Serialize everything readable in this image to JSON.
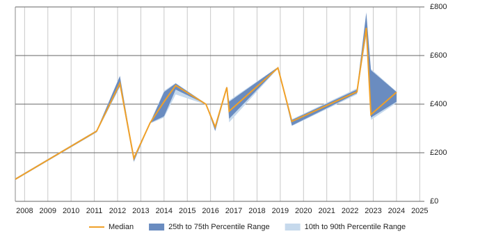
{
  "chart_data": {
    "type": "line",
    "x": [
      2007.6,
      2011.1,
      2012.1,
      2012.7,
      2013.4,
      2014.0,
      2014.5,
      2015.8,
      2016.2,
      2016.7,
      2016.8,
      2018.9,
      2019.5,
      2022.3,
      2022.7,
      2022.9,
      2024.0
    ],
    "series": [
      {
        "name": "Median",
        "color": "#f0a028",
        "values": [
          91,
          289,
          486,
          177,
          323,
          410,
          477,
          400,
          306,
          469,
          371,
          549,
          329,
          451,
          714,
          357,
          449
        ]
      },
      {
        "name": "25th to 75th Percentile Range",
        "color": "#6a8cc0",
        "low": [
          88,
          285,
          475,
          165,
          323,
          350,
          460,
          400,
          290,
          465,
          340,
          548,
          312,
          445,
          690,
          345,
          410
        ],
        "high": [
          94,
          292,
          515,
          180,
          323,
          450,
          485,
          402,
          310,
          472,
          410,
          552,
          335,
          460,
          775,
          540,
          450
        ]
      },
      {
        "name": "10th to 90th Percentile Range",
        "color": "#c6d9ec",
        "low": [
          87,
          284,
          470,
          160,
          320,
          345,
          440,
          398,
          288,
          462,
          325,
          547,
          310,
          440,
          680,
          335,
          405
        ],
        "high": [
          95,
          293,
          518,
          182,
          326,
          455,
          487,
          403,
          312,
          474,
          415,
          553,
          338,
          465,
          780,
          545,
          452
        ]
      }
    ],
    "xlim": [
      2007.6,
      2025.2
    ],
    "xticks": [
      2008,
      2009,
      2010,
      2011,
      2012,
      2013,
      2014,
      2015,
      2016,
      2017,
      2018,
      2019,
      2020,
      2021,
      2022,
      2023,
      2024,
      2025
    ],
    "ylim": [
      0,
      800
    ],
    "yticks": [
      {
        "value": 0,
        "label": "£0"
      },
      {
        "value": 200,
        "label": "£200"
      },
      {
        "value": 400,
        "label": "£400"
      },
      {
        "value": 600,
        "label": "£600"
      },
      {
        "value": 800,
        "label": "£800"
      }
    ],
    "grid": true
  }
}
